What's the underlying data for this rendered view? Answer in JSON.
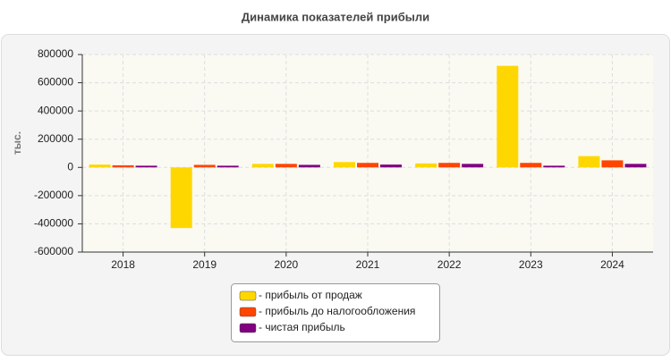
{
  "chart_data": {
    "type": "bar",
    "title": "Динамика показателей прибыли",
    "y_label": "тыс.",
    "categories": [
      "2018",
      "2019",
      "2020",
      "2021",
      "2022",
      "2023",
      "2024"
    ],
    "series": [
      {
        "name": "- прибыль от продаж",
        "color": "#ffd700",
        "values": [
          20000,
          -430000,
          25000,
          38000,
          28000,
          720000,
          80000
        ]
      },
      {
        "name": "- прибыль до налогообложения",
        "color": "#ff4500",
        "values": [
          15000,
          18000,
          25000,
          32000,
          32000,
          32000,
          50000
        ]
      },
      {
        "name": "- чистая прибыль",
        "color": "#800080",
        "values": [
          12000,
          12000,
          18000,
          20000,
          25000,
          12000,
          25000
        ]
      }
    ],
    "ylim": [
      -600000,
      800000
    ],
    "yticks": [
      -600000,
      -400000,
      -200000,
      0,
      200000,
      400000,
      600000,
      800000
    ],
    "grid": true,
    "legend": "bottom"
  }
}
